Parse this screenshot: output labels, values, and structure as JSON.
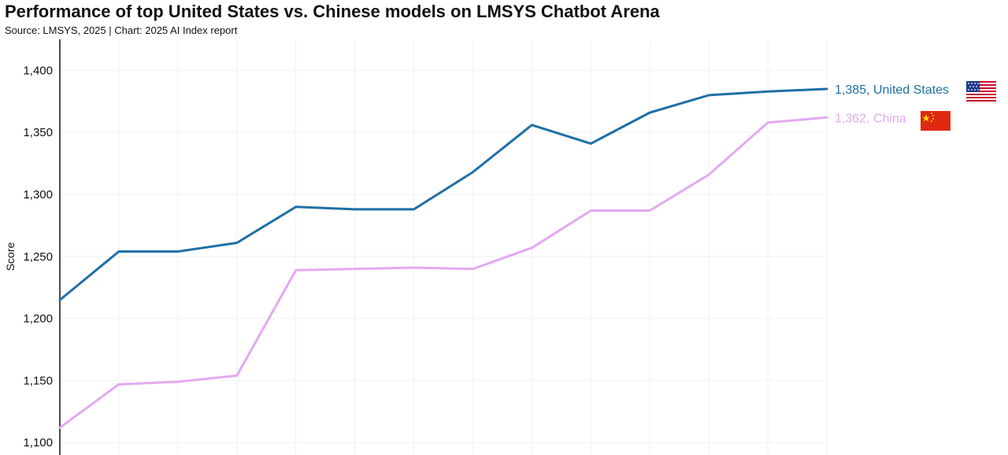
{
  "header": {
    "title": "Performance of top United States vs. Chinese models on LMSYS Chatbot Arena",
    "subtitle": "Source: LMSYS, 2025 | Chart: 2025 AI Index report"
  },
  "chart_data": {
    "type": "line",
    "title": "Performance of top United States vs. Chinese models on LMSYS Chatbot Arena",
    "subtitle": "Source: LMSYS, 2025 | Chart: 2025 AI Index report",
    "xlabel": "",
    "ylabel": "Score",
    "ylim": [
      1090,
      1425
    ],
    "yticks": [
      1100,
      1150,
      1200,
      1250,
      1300,
      1350,
      1400
    ],
    "ytick_labels": [
      "1,100",
      "1,150",
      "1,200",
      "1,250",
      "1,300",
      "1,350",
      "1,400"
    ],
    "grid": true,
    "series": [
      {
        "name": "United States",
        "color": "#1f6fa6",
        "end_label": "1,385, United States",
        "flag_icon": "us-flag-icon",
        "values": [
          1215,
          1254,
          1254,
          1261,
          1290,
          1288,
          1288,
          1318,
          1356,
          1341,
          1366,
          1380,
          1383,
          1385
        ]
      },
      {
        "name": "China",
        "color": "#e4a9f2",
        "end_label": "1,362, China",
        "flag_icon": "china-flag-icon",
        "values": [
          1112,
          1147,
          1149,
          1154,
          1239,
          1240,
          1241,
          1240,
          1257,
          1287,
          1287,
          1316,
          1358,
          1362
        ]
      }
    ]
  }
}
